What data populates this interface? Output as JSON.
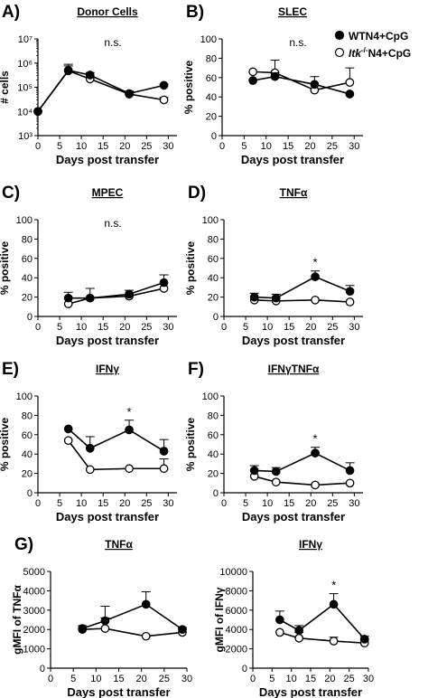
{
  "legend": {
    "entries": [
      {
        "label": "WTN4+CpG",
        "marker": "filled-circle"
      },
      {
        "label": "Itk-/-N4+CpG",
        "prefix_italic": "Itk",
        "sup": "-/-",
        "suffix": "N4+CpG",
        "marker": "open-circle"
      }
    ]
  },
  "chart_data": [
    {
      "panel": "A)",
      "type": "line",
      "title": "Donor Cells",
      "annotation": "n.s.",
      "xlabel": "Days post transfer",
      "ylabel": "# cells",
      "xlim": [
        0,
        32
      ],
      "xticks": [
        0,
        5,
        10,
        15,
        20,
        25,
        30
      ],
      "yscale": "log",
      "ylim": [
        1000,
        10000000
      ],
      "yticks": [
        1000,
        10000,
        100000,
        1000000,
        10000000
      ],
      "ytick_labels": [
        "10³",
        "10⁴",
        "10⁵",
        "10⁶",
        "10⁷"
      ],
      "x": [
        0,
        7,
        12,
        21,
        29
      ],
      "series": [
        {
          "name": "WTN4+CpG",
          "filled": true,
          "values": [
            10000,
            500000,
            320000,
            55000,
            120000
          ],
          "err": [
            0,
            0.25,
            0.1,
            0.1,
            0.05
          ]
        },
        {
          "name": "Itk-/-N4+CpG",
          "filled": false,
          "values": [
            10000,
            480000,
            220000,
            52000,
            30000
          ],
          "err": [
            0,
            0.2,
            0.05,
            0.1,
            0.1
          ]
        }
      ]
    },
    {
      "panel": "B)",
      "type": "line",
      "title": "SLEC",
      "annotation": "n.s.",
      "xlabel": "Days post transfer",
      "ylabel": "% positive",
      "xlim": [
        0,
        32
      ],
      "xticks": [
        0,
        5,
        10,
        15,
        20,
        25,
        30
      ],
      "ylim": [
        0,
        100
      ],
      "yticks": [
        0,
        20,
        40,
        60,
        80,
        100
      ],
      "x": [
        7,
        12,
        21,
        29
      ],
      "series": [
        {
          "name": "WTN4+CpG",
          "filled": true,
          "values": [
            57,
            61,
            53,
            43
          ],
          "err": [
            0,
            4,
            0,
            0
          ]
        },
        {
          "name": "Itk-/-N4+CpG",
          "filled": false,
          "values": [
            66,
            65,
            47,
            55
          ],
          "err": [
            0,
            13,
            14,
            15
          ]
        }
      ]
    },
    {
      "panel": "C)",
      "type": "line",
      "title": "MPEC",
      "annotation": "n.s.",
      "xlabel": "Days post transfer",
      "ylabel": "% positive",
      "xlim": [
        0,
        32
      ],
      "xticks": [
        0,
        5,
        10,
        15,
        20,
        25,
        30
      ],
      "ylim": [
        0,
        100
      ],
      "yticks": [
        0,
        20,
        40,
        60,
        80,
        100
      ],
      "x": [
        7,
        12,
        21,
        29
      ],
      "series": [
        {
          "name": "WTN4+CpG",
          "filled": true,
          "values": [
            19,
            19,
            23,
            35
          ],
          "err": [
            6,
            10,
            4,
            8
          ]
        },
        {
          "name": "Itk-/-N4+CpG",
          "filled": false,
          "values": [
            13,
            19,
            21,
            29
          ],
          "err": [
            0,
            0,
            0,
            0
          ]
        }
      ]
    },
    {
      "panel": "D)",
      "type": "line",
      "title": "TNFα",
      "annotation": "*",
      "annotation_x": 21,
      "xlabel": "Days post transfer",
      "ylabel": "% positive",
      "xlim": [
        0,
        32
      ],
      "xticks": [
        0,
        5,
        10,
        15,
        20,
        25,
        30
      ],
      "ylim": [
        0,
        100
      ],
      "yticks": [
        0,
        20,
        40,
        60,
        80,
        100
      ],
      "x": [
        7,
        12,
        21,
        29
      ],
      "series": [
        {
          "name": "WTN4+CpG",
          "filled": true,
          "values": [
            20,
            19,
            41,
            26
          ],
          "err": [
            4,
            4,
            6,
            6
          ]
        },
        {
          "name": "Itk-/-N4+CpG",
          "filled": false,
          "values": [
            17,
            16,
            17,
            15
          ],
          "err": [
            0,
            0,
            0,
            0
          ]
        }
      ]
    },
    {
      "panel": "E)",
      "type": "line",
      "title": "IFNγ",
      "annotation": "*",
      "annotation_x": 21,
      "xlabel": "Days post transfer",
      "ylabel": "% positive",
      "xlim": [
        0,
        32
      ],
      "xticks": [
        0,
        5,
        10,
        15,
        20,
        25,
        30
      ],
      "ylim": [
        0,
        100
      ],
      "yticks": [
        0,
        20,
        40,
        60,
        80,
        100
      ],
      "x": [
        7,
        12,
        21,
        29
      ],
      "series": [
        {
          "name": "WTN4+CpG",
          "filled": true,
          "values": [
            66,
            46,
            65,
            43
          ],
          "err": [
            0,
            12,
            10,
            12
          ]
        },
        {
          "name": "Itk-/-N4+CpG",
          "filled": false,
          "values": [
            54,
            24,
            25,
            25
          ],
          "err": [
            0,
            0,
            0,
            10
          ]
        }
      ]
    },
    {
      "panel": "F)",
      "type": "line",
      "title": "IFNγTNFα",
      "annotation": "*",
      "annotation_x": 21,
      "xlabel": "Days post transfer",
      "ylabel": "% positive",
      "xlim": [
        0,
        32
      ],
      "xticks": [
        0,
        5,
        10,
        15,
        20,
        25,
        30
      ],
      "ylim": [
        0,
        100
      ],
      "yticks": [
        0,
        20,
        40,
        60,
        80,
        100
      ],
      "x": [
        7,
        12,
        21,
        29
      ],
      "series": [
        {
          "name": "WTN4+CpG",
          "filled": true,
          "values": [
            23,
            22,
            41,
            23
          ],
          "err": [
            5,
            4,
            6,
            8
          ]
        },
        {
          "name": "Itk-/-N4+CpG",
          "filled": false,
          "values": [
            17,
            11,
            8,
            10
          ],
          "err": [
            0,
            0,
            0,
            0
          ]
        }
      ]
    },
    {
      "panel": "G)",
      "type": "line",
      "title": "TNFα",
      "xlabel": "Days post transfer",
      "ylabel": "gMFI of TNFα",
      "xlim": [
        0,
        30
      ],
      "xticks": [
        0,
        5,
        10,
        15,
        20,
        25,
        30
      ],
      "ylim": [
        0,
        5000
      ],
      "yticks": [
        0,
        1000,
        2000,
        3000,
        4000,
        5000
      ],
      "x": [
        7,
        12,
        21,
        29
      ],
      "series": [
        {
          "name": "WTN4+CpG",
          "filled": true,
          "values": [
            2050,
            2450,
            3300,
            2000
          ],
          "err": [
            150,
            750,
            650,
            100
          ]
        },
        {
          "name": "Itk-/-N4+CpG",
          "filled": false,
          "values": [
            2000,
            2050,
            1650,
            1850
          ],
          "err": [
            0,
            550,
            0,
            0
          ]
        }
      ]
    },
    {
      "panel": "",
      "type": "line",
      "title": "IFNγ",
      "annotation": "*",
      "annotation_x": 21,
      "xlabel": "Days post transfer",
      "ylabel": "gMFI of IFNγ",
      "xlim": [
        0,
        30
      ],
      "xticks": [
        0,
        5,
        10,
        15,
        20,
        25,
        30
      ],
      "ylim": [
        0,
        10000
      ],
      "yticks": [
        0,
        2000,
        4000,
        6000,
        8000,
        10000
      ],
      "x": [
        7,
        12,
        21,
        29
      ],
      "series": [
        {
          "name": "WTN4+CpG",
          "filled": true,
          "values": [
            5000,
            3900,
            6600,
            3000
          ],
          "err": [
            900,
            500,
            1100,
            300
          ]
        },
        {
          "name": "Itk-/-N4+CpG",
          "filled": false,
          "values": [
            3700,
            3100,
            2800,
            2600
          ],
          "err": [
            0,
            600,
            400,
            300
          ]
        }
      ]
    }
  ]
}
